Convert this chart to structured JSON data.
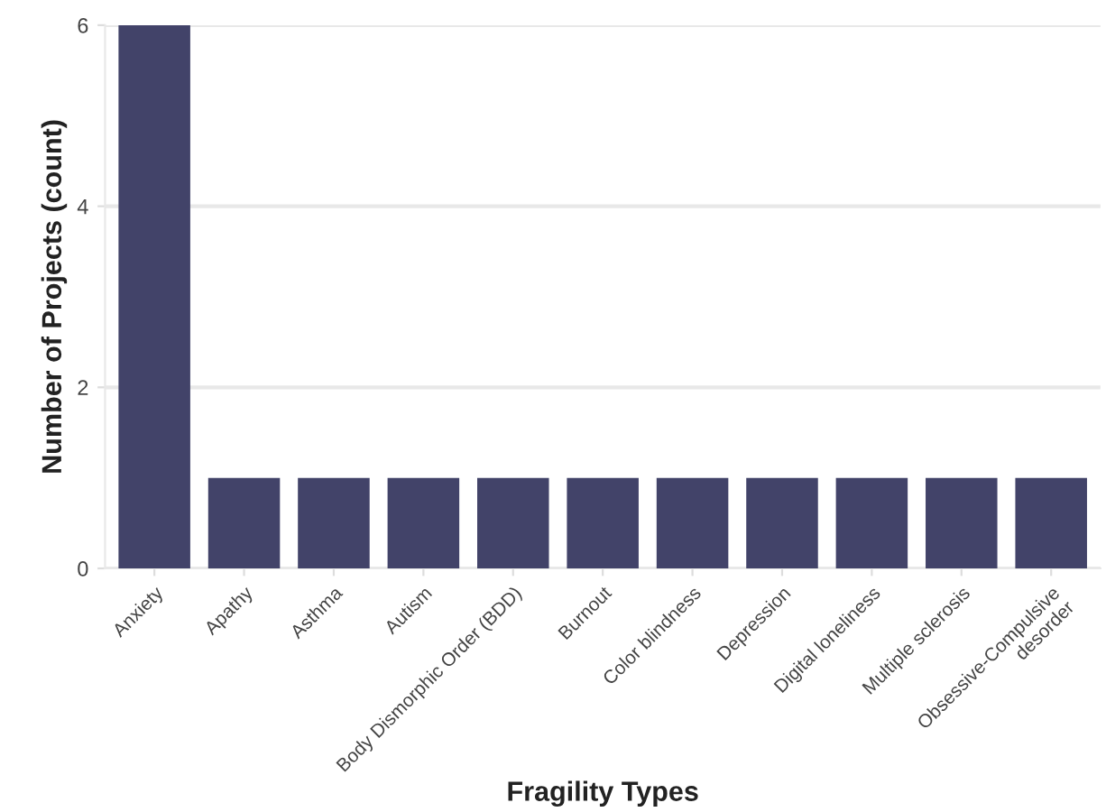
{
  "chart_data": {
    "type": "bar",
    "xlabel": "Fragility Types",
    "ylabel": "Number of Projects (count)",
    "categories": [
      "Anxiety",
      "Apathy",
      "Asthma",
      "Autism",
      "Body Dismorphic Order (BDD)",
      "Burnout",
      "Color blindness",
      "Depression",
      "Digital loneliness",
      "Multiple sclerosis",
      "Obsessive-Compulsive\ndesorder"
    ],
    "values": [
      6,
      1,
      1,
      1,
      1,
      1,
      1,
      1,
      1,
      1,
      1
    ],
    "color": "#424369",
    "ylim": [
      0,
      6
    ],
    "yticks": [
      0,
      2,
      4,
      6
    ],
    "grid": "y"
  }
}
